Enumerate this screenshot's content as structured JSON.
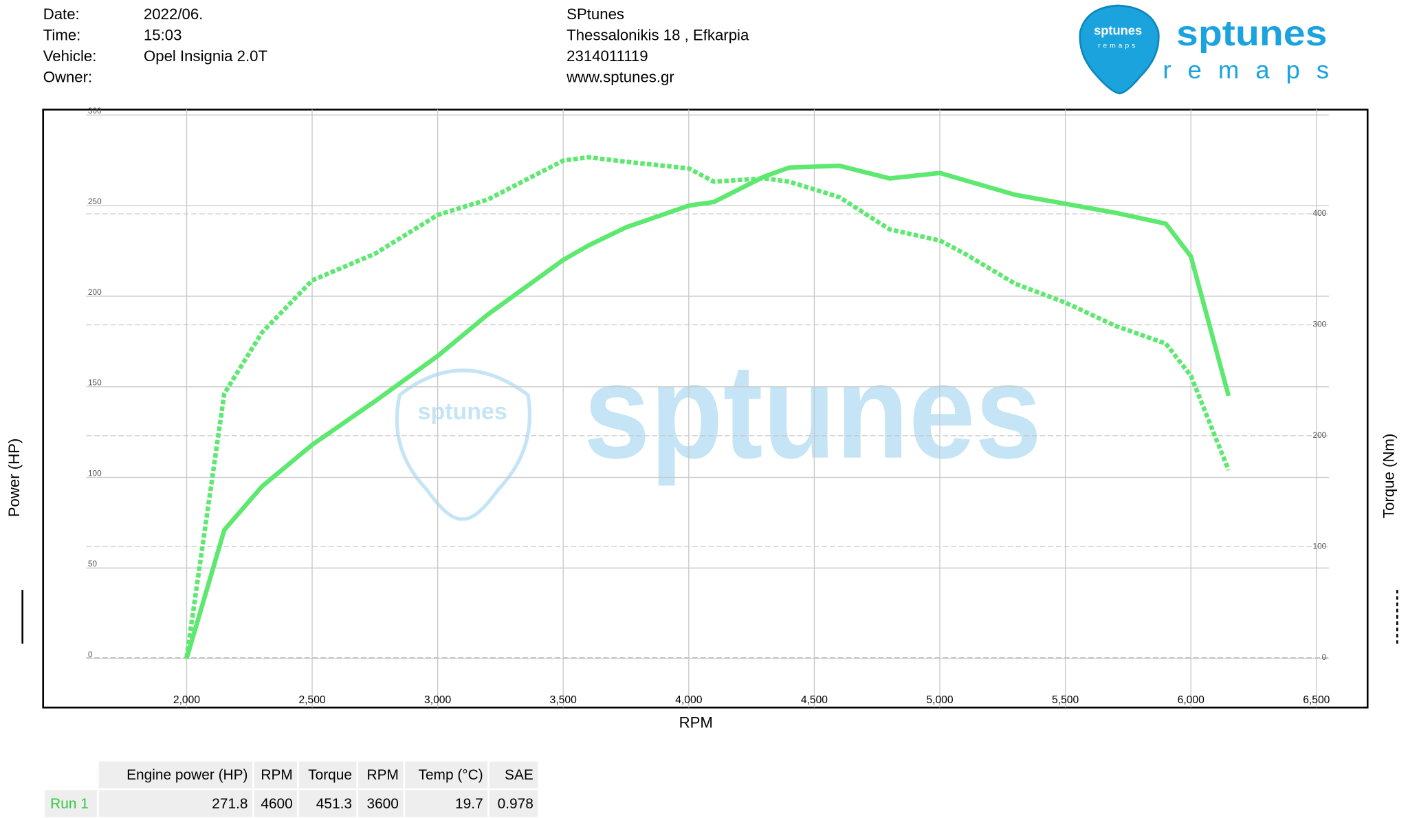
{
  "header": {
    "fields": [
      {
        "label": "Date:",
        "value": "2022/06."
      },
      {
        "label": "Time:",
        "value": "15:03"
      },
      {
        "label": "Vehicle:",
        "value": "Opel Insignia 2.0T"
      },
      {
        "label": "Owner:"
      }
    ],
    "company": [
      "SPtunes",
      "Thessalonikis 18 , Efkarpia",
      "2314011119",
      "www.sptunes.gr"
    ],
    "logo": {
      "name": "sptunes",
      "tagline": "remaps"
    }
  },
  "watermark": "sptunes",
  "chart_data": {
    "type": "line",
    "x_label": "RPM",
    "y_label": "Power (HP)",
    "y2_label": "Torque (Nm)",
    "x": [
      2000,
      2150,
      2300,
      2500,
      2750,
      3000,
      3200,
      3500,
      3600,
      3750,
      4000,
      4100,
      4300,
      4400,
      4600,
      4800,
      5000,
      5100,
      5300,
      5500,
      5700,
      5900,
      6000,
      6150
    ],
    "series": [
      {
        "color": "#5de86f",
        "line_style": "solid",
        "axis": "y",
        "values": [
          0,
          71,
          95,
          118,
          142,
          167,
          190,
          220,
          228,
          238,
          250,
          252,
          266,
          271,
          272,
          265,
          268,
          264,
          256,
          251,
          246,
          240,
          222,
          145
        ]
      },
      {
        "color": "#5de86f",
        "line_style": "dashed",
        "axis": "y2",
        "values": [
          0,
          238,
          293,
          340,
          364,
          399,
          413,
          448,
          451,
          447,
          441,
          429,
          432,
          429,
          415,
          386,
          376,
          364,
          337,
          320,
          299,
          283,
          254,
          169
        ]
      }
    ],
    "xlim": [
      1600,
      6550
    ],
    "ylim": [
      -27,
      303
    ],
    "y2lim": [
      -45,
      494
    ],
    "xticks": [
      {
        "value": 2000,
        "label": "2,000"
      },
      {
        "value": 2500,
        "label": "2,500"
      },
      {
        "value": 3000,
        "label": "3,000"
      },
      {
        "value": 3500,
        "label": "3,500"
      },
      {
        "value": 4000,
        "label": "4,000"
      },
      {
        "value": 4500,
        "label": "4,500"
      },
      {
        "value": 5000,
        "label": "5,000"
      },
      {
        "value": 5500,
        "label": "5,500"
      },
      {
        "value": 6000,
        "label": "6,000"
      },
      {
        "value": 6500,
        "label": "6,500"
      }
    ],
    "yticks": [
      0,
      50,
      100,
      150,
      200,
      250,
      300
    ],
    "y2ticks": [
      0,
      100,
      200,
      300,
      400
    ],
    "grid": true
  },
  "table": {
    "header": [
      "Engine power (HP)",
      "RPM",
      "Torque",
      "RPM",
      "Temp (°C)",
      "SAE"
    ],
    "rows": [
      [
        "Run 1",
        271.8,
        4600,
        451.3,
        3600,
        19.7,
        0.978
      ]
    ]
  }
}
